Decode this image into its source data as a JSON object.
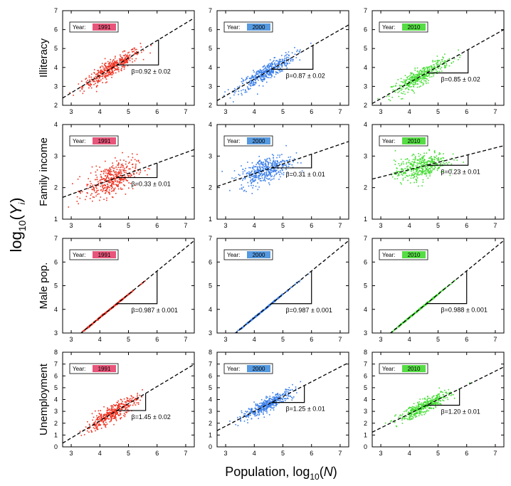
{
  "chart_data": {
    "type": "scatter",
    "layout": "4x3 grid of scatter panels",
    "xlabel_prefix": "Population, log",
    "xlabel_sub": "10",
    "xlabel_var": "N",
    "ylabel_prefix": "log",
    "ylabel_sub": "10",
    "ylabel_var": "Y",
    "ylabel_var_sub": "i",
    "legend_prefix": "Year:",
    "years": [
      "1991",
      "2000",
      "2010"
    ],
    "year_colors": [
      "#ee3322",
      "#3a7ee8",
      "#44dd33"
    ],
    "legend_colors": [
      "#e8557a",
      "#5599e0",
      "#55dd44"
    ],
    "x_ticks": [
      "3",
      "4",
      "5",
      "6",
      "7"
    ],
    "xlim": [
      2.7,
      7.3
    ],
    "rows": [
      {
        "label": "Illiteracy",
        "ylim": [
          2,
          7
        ],
        "y_ticks": [
          "2",
          "3",
          "4",
          "5",
          "6",
          "7"
        ],
        "panels": [
          {
            "year": "1991",
            "annotation": "β=0.92 ± 0.02",
            "beta": 0.92,
            "intercept": -0.1,
            "tri": [
              4.6,
              6.05
            ],
            "cloud": {
              "x_mean": 4.4,
              "x_sd": 0.5,
              "y_sd": 0.22
            }
          },
          {
            "year": "2000",
            "annotation": "β=0.87 ± 0.02",
            "beta": 0.87,
            "intercept": -0.1,
            "tri": [
              4.6,
              6.05
            ],
            "cloud": {
              "x_mean": 4.4,
              "x_sd": 0.5,
              "y_sd": 0.22
            }
          },
          {
            "year": "2010",
            "annotation": "β=0.85 ± 0.02",
            "beta": 0.85,
            "intercept": -0.2,
            "tri": [
              4.6,
              6.05
            ],
            "cloud": {
              "x_mean": 4.4,
              "x_sd": 0.5,
              "y_sd": 0.22
            }
          }
        ]
      },
      {
        "label": "Family income",
        "ylim": [
          1,
          4
        ],
        "y_ticks": [
          "1",
          "2",
          "3",
          "4"
        ],
        "panels": [
          {
            "year": "1991",
            "annotation": "β=0.33 ± 0.01",
            "beta": 0.33,
            "intercept": 0.8,
            "tri": [
              4.6,
              6.0
            ],
            "cloud": {
              "x_mean": 4.4,
              "x_sd": 0.45,
              "y_sd": 0.25
            }
          },
          {
            "year": "2000",
            "annotation": "β=0.31 ± 0.01",
            "beta": 0.31,
            "intercept": 1.2,
            "tri": [
              4.6,
              6.0
            ],
            "cloud": {
              "x_mean": 4.4,
              "x_sd": 0.45,
              "y_sd": 0.2
            }
          },
          {
            "year": "2010",
            "annotation": "β=0.23 ± 0.01",
            "beta": 0.23,
            "intercept": 1.65,
            "tri": [
              4.6,
              6.05
            ],
            "cloud": {
              "x_mean": 4.4,
              "x_sd": 0.45,
              "y_sd": 0.2
            }
          }
        ]
      },
      {
        "label": "Male pop.",
        "ylim": [
          3,
          7
        ],
        "y_ticks": [
          "3",
          "4",
          "5",
          "6",
          "7"
        ],
        "panels": [
          {
            "year": "1991",
            "annotation": "β=0.987 ± 0.001",
            "beta": 0.987,
            "intercept": -0.3,
            "tri": [
              4.6,
              6.0
            ],
            "cloud": {
              "x_mean": 4.3,
              "x_sd": 0.5,
              "y_sd": 0.015
            }
          },
          {
            "year": "2000",
            "annotation": "β=0.987 ± 0.001",
            "beta": 0.987,
            "intercept": -0.3,
            "tri": [
              4.6,
              6.0
            ],
            "cloud": {
              "x_mean": 4.3,
              "x_sd": 0.5,
              "y_sd": 0.015
            }
          },
          {
            "year": "2010",
            "annotation": "β=0.988 ± 0.001",
            "beta": 0.988,
            "intercept": -0.3,
            "tri": [
              4.6,
              6.0
            ],
            "cloud": {
              "x_mean": 4.3,
              "x_sd": 0.5,
              "y_sd": 0.015
            }
          }
        ]
      },
      {
        "label": "Unemployment",
        "ylim": [
          0,
          8
        ],
        "y_ticks": [
          "0",
          "1",
          "2",
          "3",
          "4",
          "5",
          "6",
          "7",
          "8"
        ],
        "panels": [
          {
            "year": "1991",
            "annotation": "β=1.45 ± 0.02",
            "beta": 1.45,
            "intercept": -3.6,
            "tri": [
              4.6,
              5.6
            ],
            "cloud": {
              "x_mean": 4.4,
              "x_sd": 0.45,
              "y_sd": 0.35
            }
          },
          {
            "year": "2000",
            "annotation": "β=1.25 ± 0.01",
            "beta": 1.25,
            "intercept": -2.0,
            "tri": [
              4.6,
              5.75
            ],
            "cloud": {
              "x_mean": 4.5,
              "x_sd": 0.45,
              "y_sd": 0.28
            }
          },
          {
            "year": "2010",
            "annotation": "β=1.20 ± 0.01",
            "beta": 1.2,
            "intercept": -2.0,
            "tri": [
              4.6,
              5.75
            ],
            "cloud": {
              "x_mean": 4.5,
              "x_sd": 0.45,
              "y_sd": 0.28
            }
          }
        ]
      }
    ]
  }
}
